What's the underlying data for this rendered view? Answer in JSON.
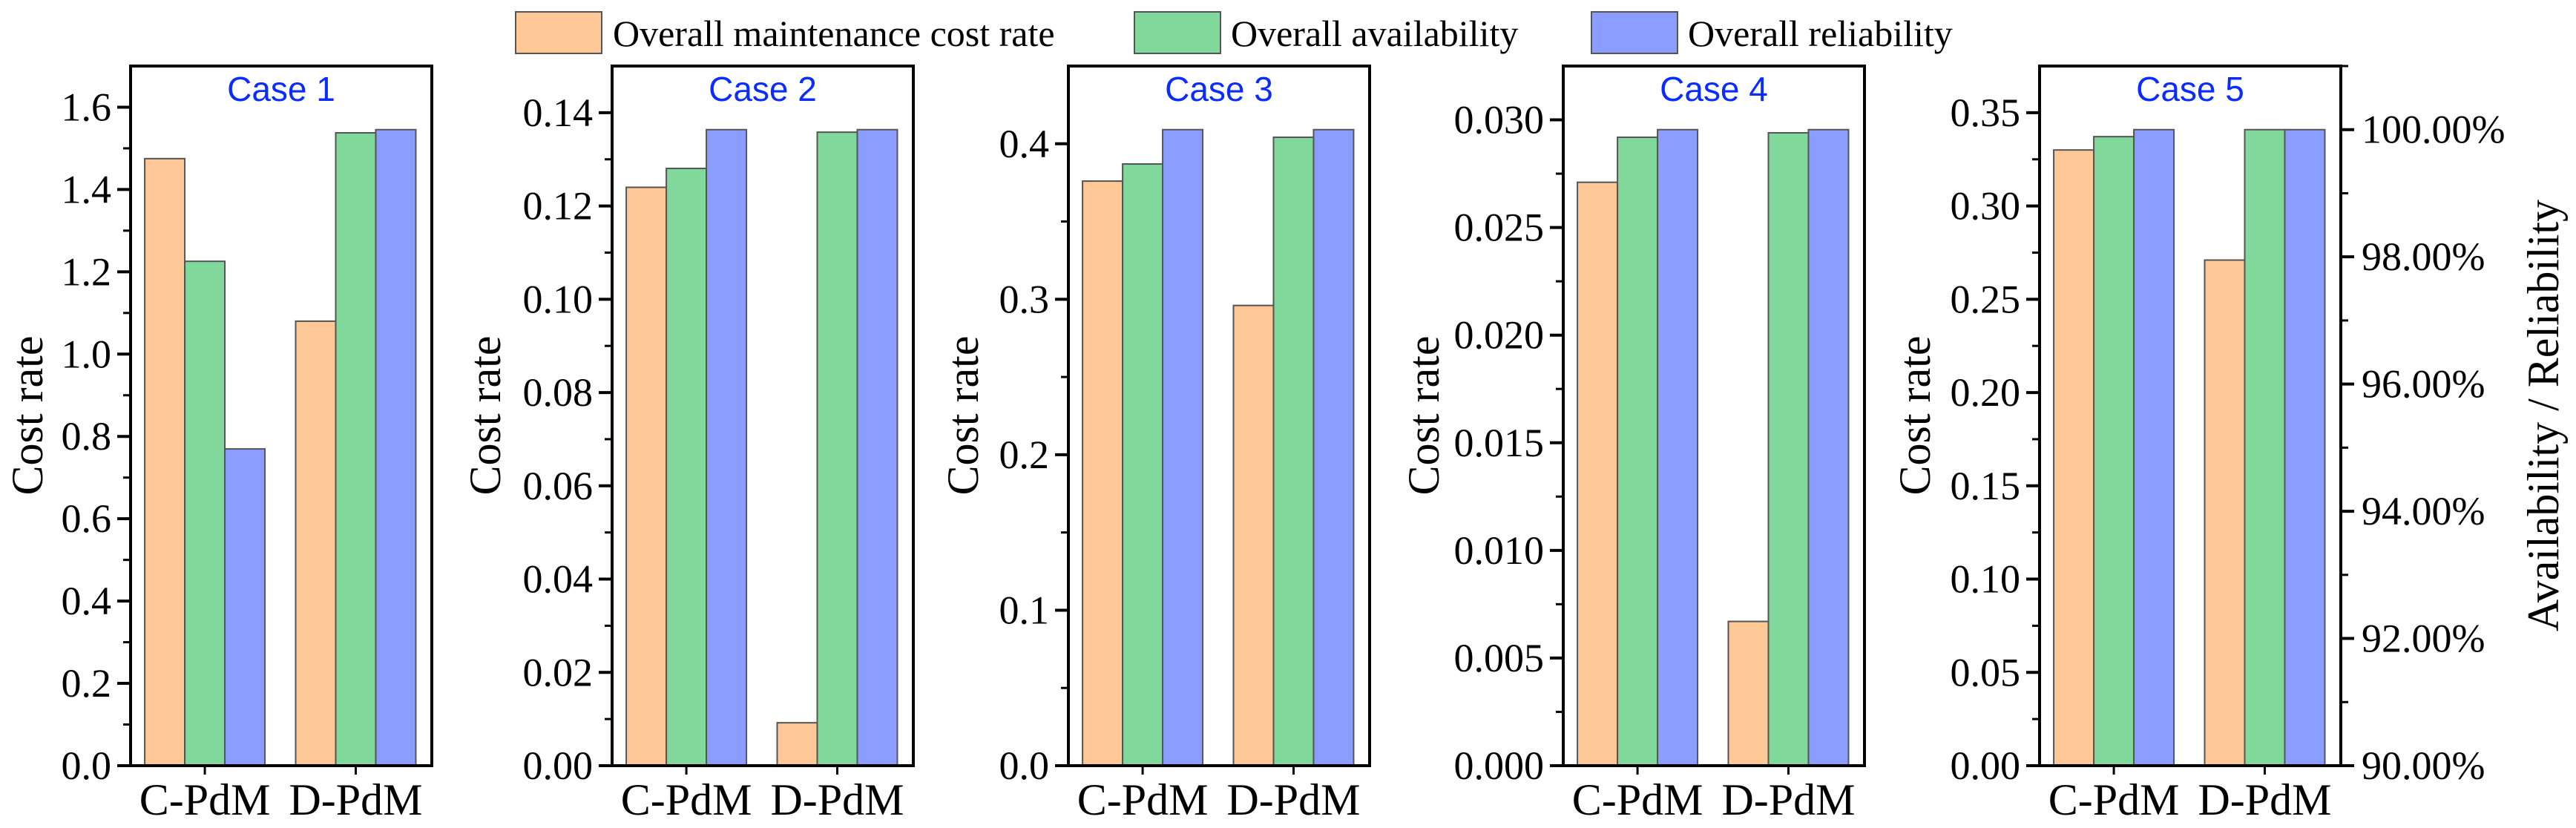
{
  "chart_data": {
    "type": "bar",
    "legend": {
      "placement": "top-center",
      "items": [
        {
          "label": "Overall maintenance cost rate",
          "color": "#FFC896",
          "axis": "left"
        },
        {
          "label": "Overall availability",
          "color": "#80D89A",
          "axis": "right"
        },
        {
          "label": "Overall reliability",
          "color": "#8B9DFF",
          "axis": "right"
        }
      ]
    },
    "categories": [
      "C-PdM",
      "D-PdM"
    ],
    "ylabel": "Cost rate",
    "y2label": "Availability / Reliability",
    "y2lim": [
      90,
      101
    ],
    "y2ticks": [
      90,
      92,
      94,
      96,
      98,
      100
    ],
    "y2tick_labels": [
      "90.00%",
      "92.00%",
      "94.00%",
      "96.00%",
      "98.00%",
      "100.00%"
    ],
    "grid": false,
    "panels": [
      {
        "title": "Case 1",
        "ylim": [
          0,
          1.7
        ],
        "yticks": [
          0,
          0.2,
          0.4,
          0.6,
          0.8,
          1.0,
          1.2,
          1.4,
          1.6
        ],
        "ytick_labels": [
          "0.0",
          "0.2",
          "0.4",
          "0.6",
          "0.8",
          "1.0",
          "1.2",
          "1.4",
          "1.6"
        ],
        "cost_rate": [
          1.475,
          1.08
        ],
        "availability_pct": [
          97.93,
          99.95
        ],
        "reliability_pct": [
          94.98,
          100.0
        ]
      },
      {
        "title": "Case 2",
        "ylim": [
          0,
          0.15
        ],
        "yticks": [
          0,
          0.02,
          0.04,
          0.06,
          0.08,
          0.1,
          0.12,
          0.14
        ],
        "ytick_labels": [
          "0.00",
          "0.02",
          "0.04",
          "0.06",
          "0.08",
          "0.10",
          "0.12",
          "0.14"
        ],
        "cost_rate": [
          0.124,
          0.0092
        ],
        "availability_pct": [
          99.39,
          99.96
        ],
        "reliability_pct": [
          100.0,
          100.0
        ]
      },
      {
        "title": "Case 3",
        "ylim": [
          0,
          0.45
        ],
        "yticks": [
          0,
          0.1,
          0.2,
          0.3,
          0.4
        ],
        "ytick_labels": [
          "0.0",
          "0.1",
          "0.2",
          "0.3",
          "0.4"
        ],
        "cost_rate": [
          0.376,
          0.296
        ],
        "availability_pct": [
          99.46,
          99.88
        ],
        "reliability_pct": [
          100.0,
          100.0
        ]
      },
      {
        "title": "Case 4",
        "ylim": [
          0,
          0.0325
        ],
        "yticks": [
          0,
          0.005,
          0.01,
          0.015,
          0.02,
          0.025,
          0.03
        ],
        "ytick_labels": [
          "0.000",
          "0.005",
          "0.010",
          "0.015",
          "0.020",
          "0.025",
          "0.030"
        ],
        "cost_rate": [
          0.0271,
          0.0067
        ],
        "availability_pct": [
          99.88,
          99.95
        ],
        "reliability_pct": [
          100.0,
          100.0
        ]
      },
      {
        "title": "Case 5",
        "ylim": [
          0,
          0.375
        ],
        "yticks": [
          0,
          0.05,
          0.1,
          0.15,
          0.2,
          0.25,
          0.3,
          0.35
        ],
        "ytick_labels": [
          "0.00",
          "0.05",
          "0.10",
          "0.15",
          "0.20",
          "0.25",
          "0.30",
          "0.35"
        ],
        "cost_rate": [
          0.33,
          0.271
        ],
        "availability_pct": [
          99.89,
          100.0
        ],
        "reliability_pct": [
          100.0,
          100.0
        ]
      }
    ]
  }
}
